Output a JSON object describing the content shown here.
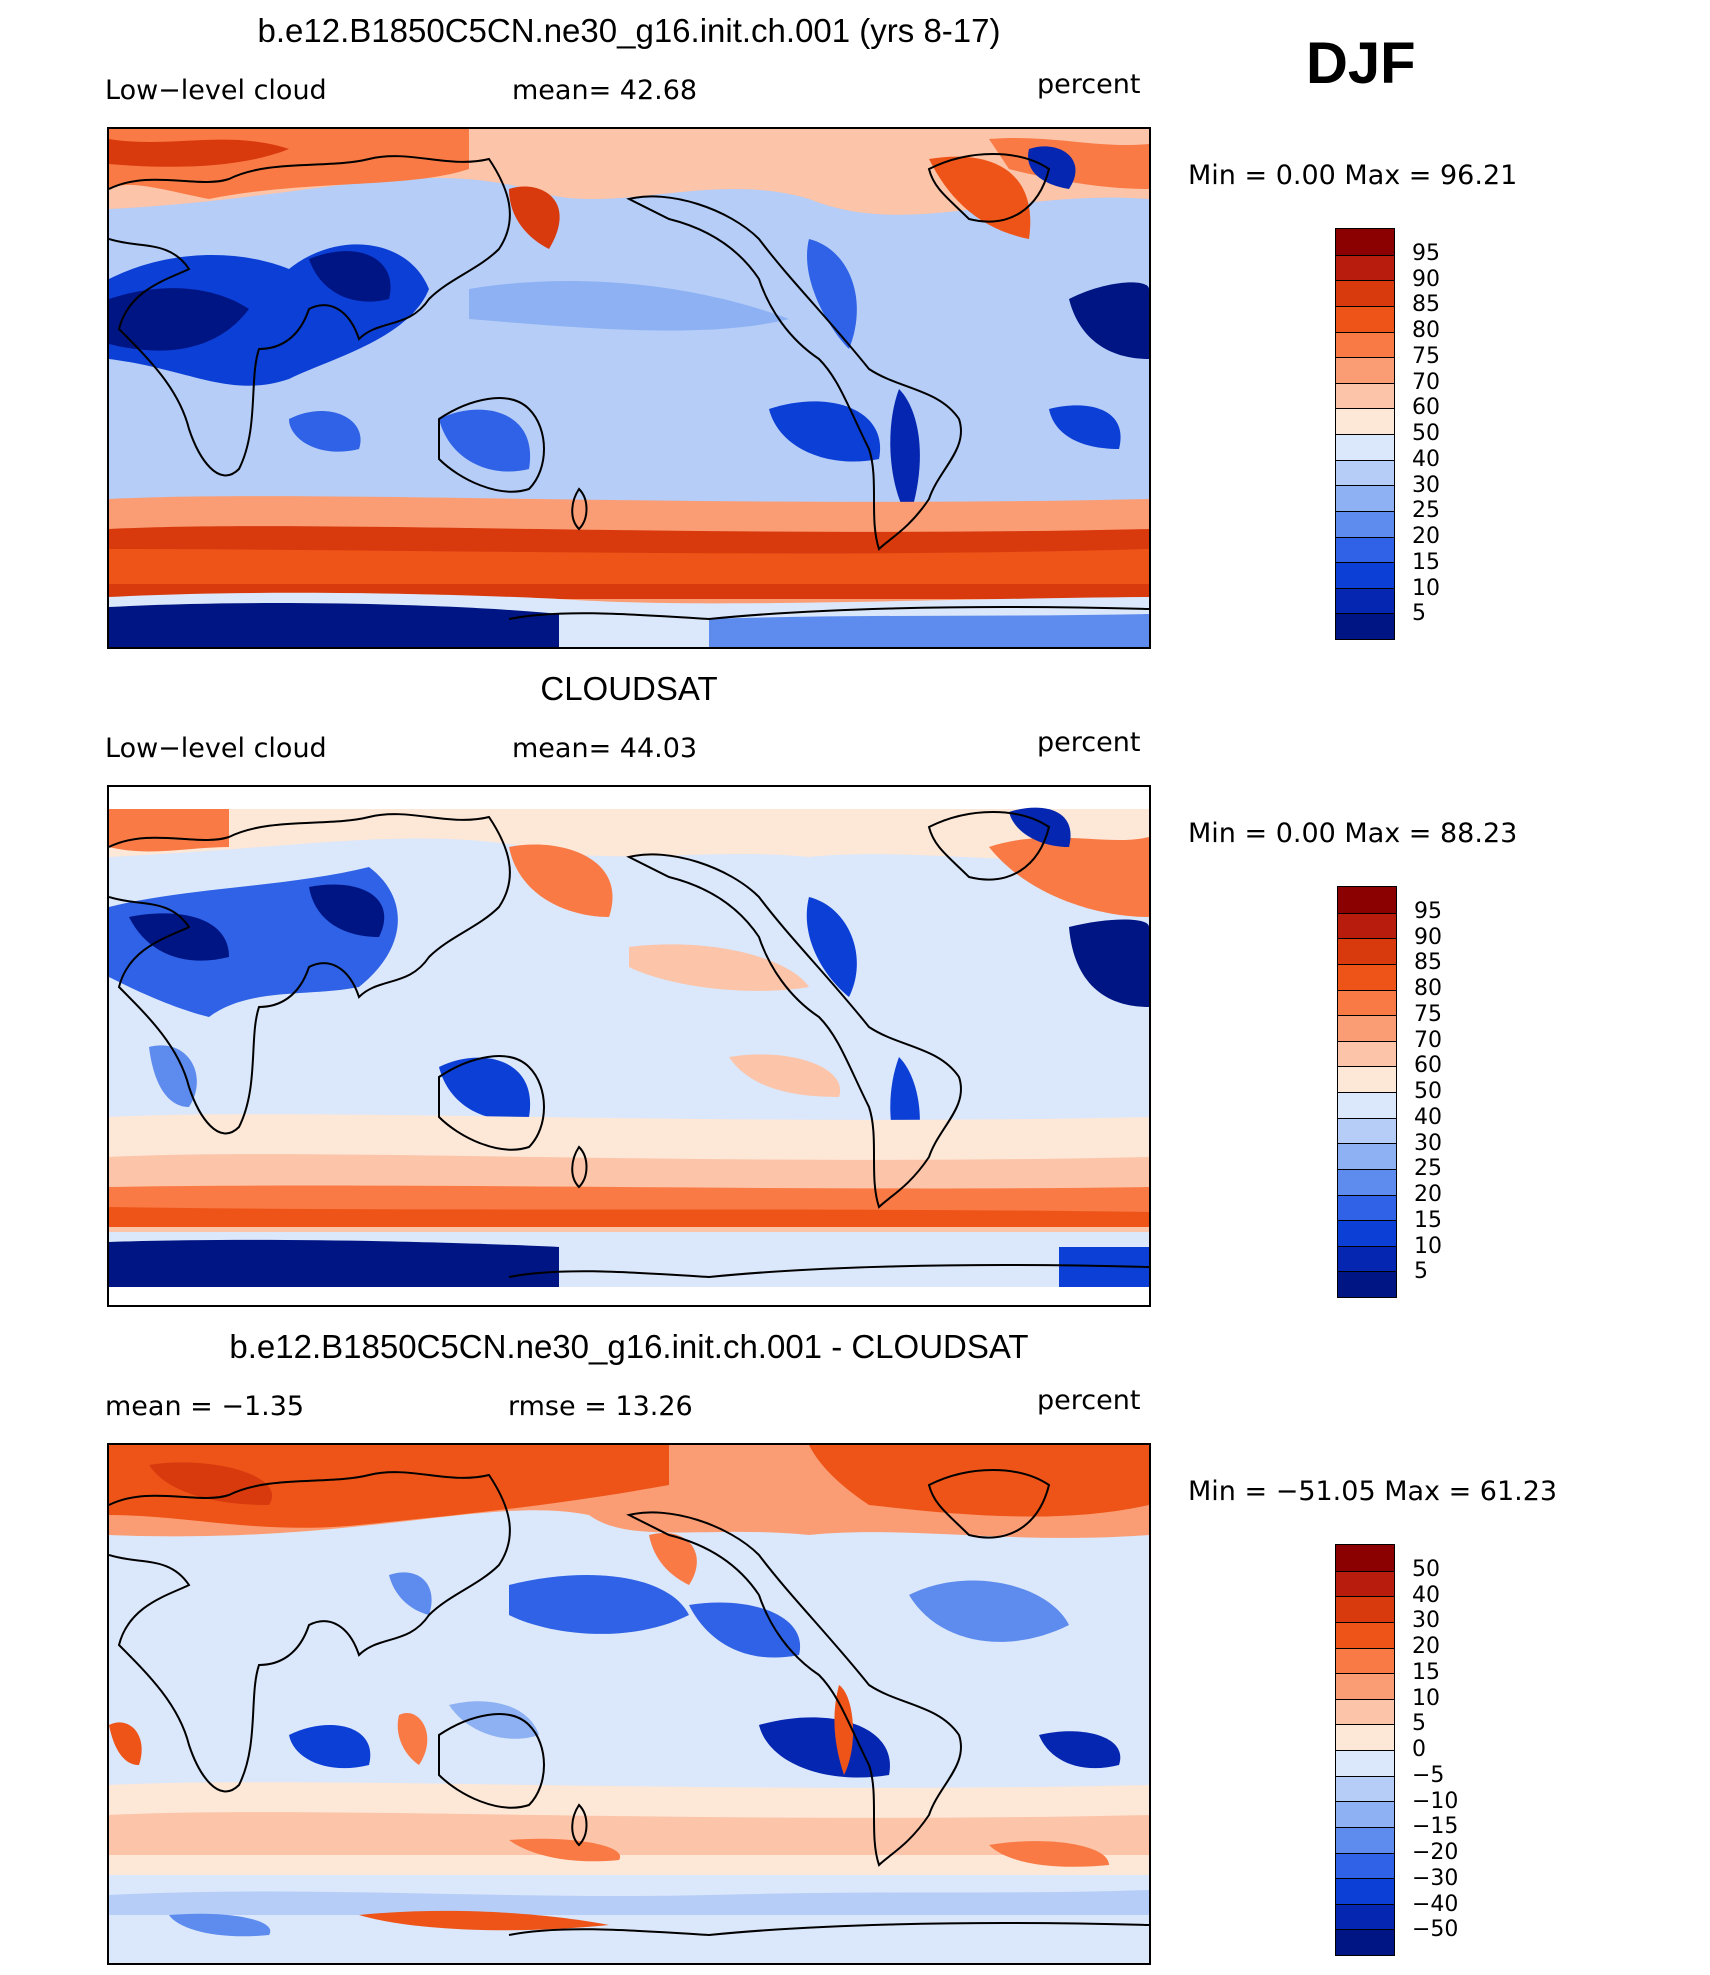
{
  "season": "DJF",
  "panels": [
    {
      "title": "b.e12.B1850C5CN.ne30_g16.init.ch.001 (yrs 8-17)",
      "left_label": "Low−level cloud",
      "center_label": "mean=   42.68",
      "right_label": "percent",
      "minmax": "Min =     0.00  Max =    96.21",
      "colorbar_levels": [
        "95",
        "90",
        "85",
        "80",
        "75",
        "70",
        "60",
        "50",
        "40",
        "30",
        "25",
        "20",
        "15",
        "10",
        "5"
      ],
      "palette": "abs"
    },
    {
      "title": "CLOUDSAT",
      "left_label": "Low−level cloud",
      "center_label": "mean=   44.03",
      "right_label": "percent",
      "minmax": "Min =     0.00  Max =    88.23",
      "colorbar_levels": [
        "95",
        "90",
        "85",
        "80",
        "75",
        "70",
        "60",
        "50",
        "40",
        "30",
        "25",
        "20",
        "15",
        "10",
        "5"
      ],
      "palette": "abs"
    },
    {
      "title": "b.e12.B1850C5CN.ne30_g16.init.ch.001 - CLOUDSAT",
      "left_label": "mean  =   −1.35",
      "center_label": "rmse  =    13.26",
      "right_label": "percent",
      "minmax": "Min  =  −51.05  Max  =    61.23",
      "colorbar_levels": [
        "50",
        "40",
        "30",
        "20",
        "15",
        "10",
        "5",
        "0",
        "−5",
        "−10",
        "−15",
        "−20",
        "−30",
        "−40",
        "−50"
      ],
      "palette": "diff"
    }
  ],
  "colors": {
    "abs": [
      "#8b0000",
      "#b81c0c",
      "#d83a0e",
      "#ee5418",
      "#f97a45",
      "#fb9d74",
      "#fcc4a8",
      "#fde7d7",
      "#dbe7fa",
      "#b5cdf7",
      "#8db1f3",
      "#5e8cee",
      "#2f62e6",
      "#0c3fd6",
      "#0526b0",
      "#001584"
    ],
    "diff": [
      "#8b0000",
      "#b81c0c",
      "#d83a0e",
      "#ee5418",
      "#f97a45",
      "#fb9d74",
      "#fcc4a8",
      "#fde7d7",
      "#dbe7fa",
      "#b5cdf7",
      "#8db1f3",
      "#5e8cee",
      "#2f62e6",
      "#0c3fd6",
      "#0526b0",
      "#001584"
    ]
  },
  "chart_data": [
    {
      "type": "heatmap",
      "title": "b.e12.B1850C5CN.ne30_g16.init.ch.001 (yrs 8-17)",
      "field": "Low−level cloud",
      "units": "percent",
      "mean": 42.68,
      "min": 0.0,
      "max": 96.21,
      "levels": [
        5,
        10,
        15,
        20,
        25,
        30,
        40,
        50,
        60,
        70,
        75,
        80,
        85,
        90,
        95
      ]
    },
    {
      "type": "heatmap",
      "title": "CLOUDSAT",
      "field": "Low−level cloud",
      "units": "percent",
      "mean": 44.03,
      "min": 0.0,
      "max": 88.23,
      "levels": [
        5,
        10,
        15,
        20,
        25,
        30,
        40,
        50,
        60,
        70,
        75,
        80,
        85,
        90,
        95
      ]
    },
    {
      "type": "heatmap",
      "title": "b.e12.B1850C5CN.ne30_g16.init.ch.001 - CLOUDSAT",
      "units": "percent",
      "mean": -1.35,
      "rmse": 13.26,
      "min": -51.05,
      "max": 61.23,
      "levels": [
        -50,
        -40,
        -30,
        -20,
        -15,
        -10,
        -5,
        0,
        5,
        10,
        15,
        20,
        30,
        40,
        50
      ]
    }
  ]
}
